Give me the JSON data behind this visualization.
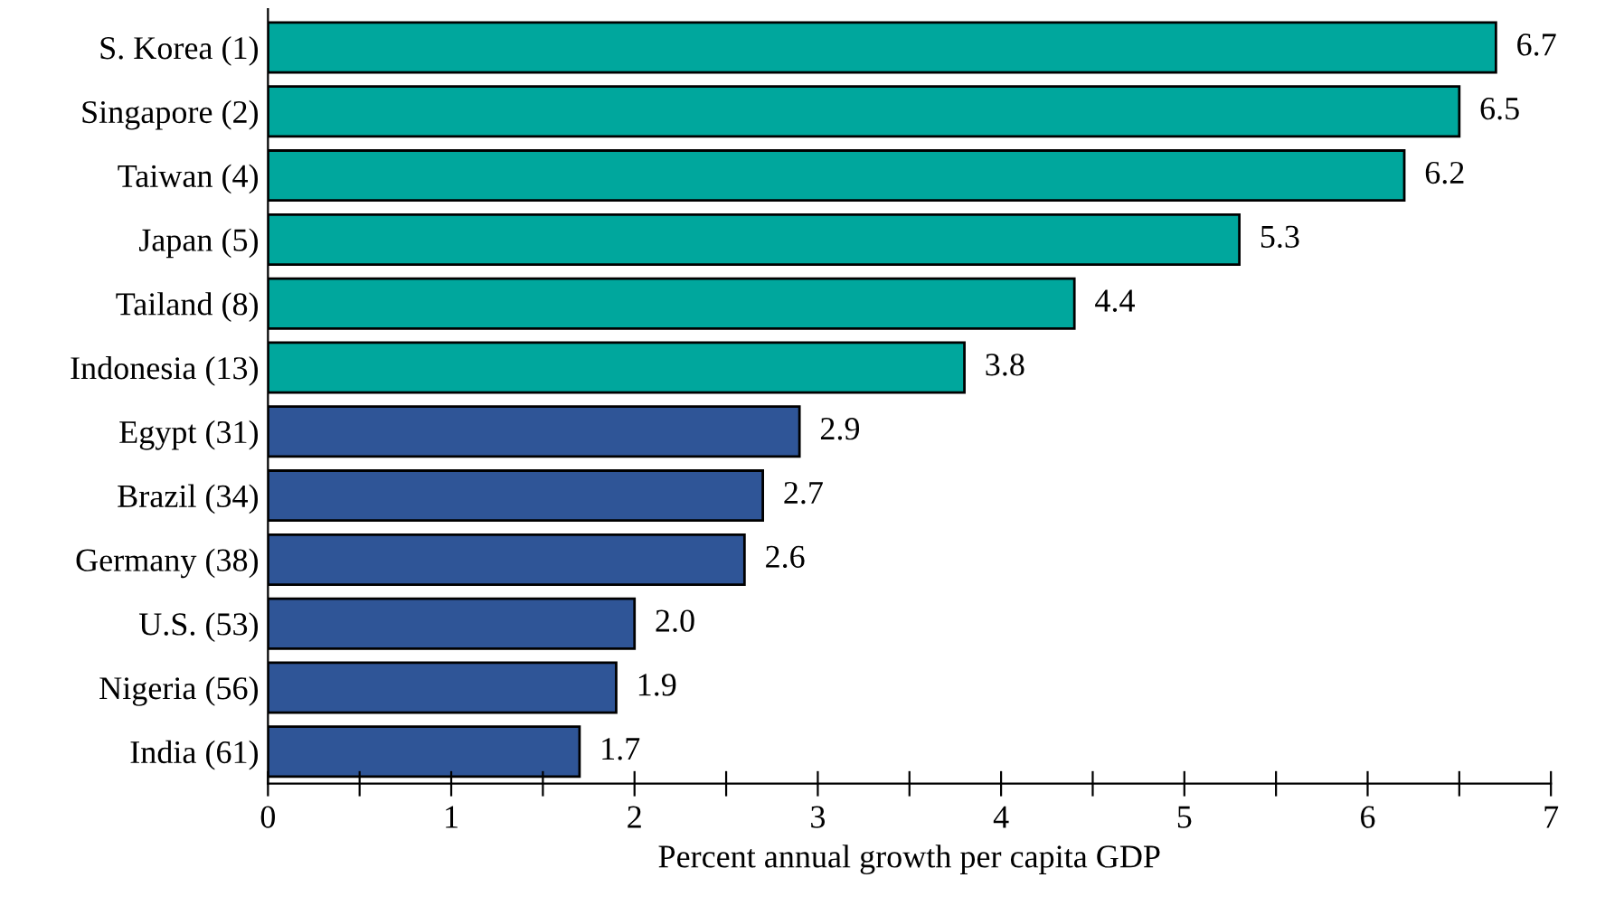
{
  "chart_data": {
    "type": "bar",
    "orientation": "horizontal",
    "xlabel": "Percent annual growth per capita GDP",
    "categories": [
      "S. Korea (1)",
      "Singapore (2)",
      "Taiwan (4)",
      "Japan (5)",
      "Tailand (8)",
      "Indonesia (13)",
      "Egypt (31)",
      "Brazil (34)",
      "Germany (38)",
      "U.S. (53)",
      "Nigeria (56)",
      "India (61)"
    ],
    "values": [
      6.7,
      6.5,
      6.2,
      5.3,
      4.4,
      3.8,
      2.9,
      2.7,
      2.6,
      2.0,
      1.9,
      1.7
    ],
    "value_labels": [
      "6.7",
      "6.5",
      "6.2",
      "5.3",
      "4.4",
      "3.8",
      "2.9",
      "2.7",
      "2.6",
      "2.0",
      "1.9",
      "1.7"
    ],
    "colors": [
      "#00a79d",
      "#00a79d",
      "#00a79d",
      "#00a79d",
      "#00a79d",
      "#00a79d",
      "#2f5597",
      "#2f5597",
      "#2f5597",
      "#2f5597",
      "#2f5597",
      "#2f5597"
    ],
    "xlim": [
      0,
      7
    ],
    "xticks": [
      0,
      {
        "value": 0.5,
        "label": null
      },
      1,
      {
        "value": 1.5,
        "label": null
      },
      2,
      {
        "value": 2.5,
        "label": null
      },
      3,
      {
        "value": 3.5,
        "label": null
      },
      4,
      {
        "value": 4.5,
        "label": null
      },
      5,
      {
        "value": 5.5,
        "label": null
      },
      6,
      {
        "value": 6.5,
        "label": null
      },
      7
    ],
    "grid": false
  }
}
